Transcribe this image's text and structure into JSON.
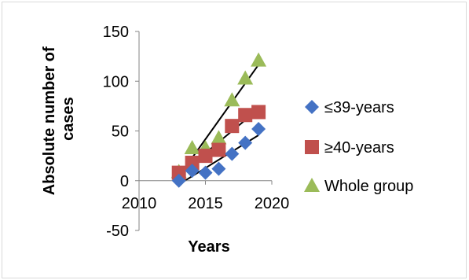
{
  "chart_data": {
    "type": "scatter",
    "title": "",
    "xlabel": "Years",
    "ylabel": "Absolute number of cases",
    "xlim": [
      2010,
      2020
    ],
    "ylim": [
      -50,
      150
    ],
    "xticks": [
      "2010",
      "2015",
      "2020"
    ],
    "yticks": [
      "-50",
      "0",
      "50",
      "100",
      "150"
    ],
    "legend_position": "right",
    "grid": false,
    "trendlines": true,
    "series": [
      {
        "name": "≤39-years",
        "marker": "diamond",
        "color": "#4472C4",
        "x": [
          2013,
          2014,
          2015,
          2016,
          2017,
          2018,
          2019
        ],
        "y": [
          0,
          10,
          8,
          12,
          27,
          38,
          52
        ]
      },
      {
        "name": "≥40-years",
        "marker": "square",
        "color": "#C0504D",
        "x": [
          2013,
          2014,
          2015,
          2016,
          2017,
          2018,
          2019
        ],
        "y": [
          8,
          18,
          25,
          31,
          55,
          66,
          69
        ]
      },
      {
        "name": "Whole group",
        "marker": "triangle",
        "color": "#9BBB59",
        "x": [
          2013,
          2014,
          2015,
          2016,
          2017,
          2018,
          2019
        ],
        "y": [
          9,
          33,
          33,
          43,
          81,
          103,
          121
        ]
      }
    ]
  }
}
